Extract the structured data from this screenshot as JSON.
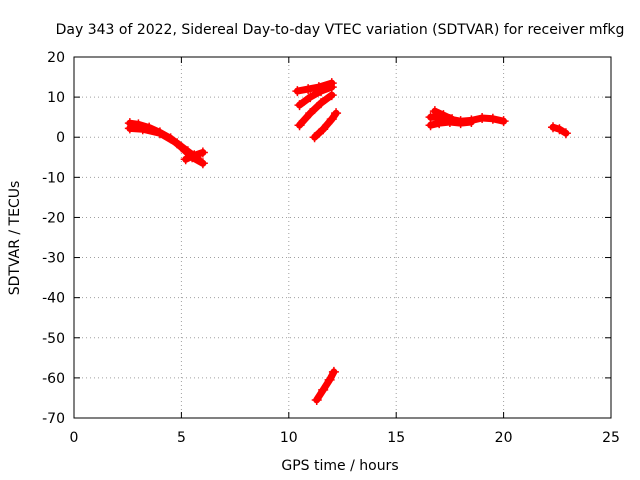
{
  "chart_data": {
    "type": "scatter",
    "title": "Day 343 of 2022, Sidereal Day-to-day VTEC variation (SDTVAR) for receiver mfkg",
    "xlabel": "GPS time / hours",
    "ylabel": "SDTVAR / TECUs",
    "xlim": [
      0,
      25
    ],
    "ylim": [
      -70,
      20
    ],
    "xticks": [
      0,
      5,
      10,
      15,
      20,
      25
    ],
    "yticks": [
      20,
      10,
      0,
      -10,
      -20,
      -30,
      -40,
      -50,
      -60,
      -70
    ],
    "grid": true,
    "series_color": "#ff0000",
    "series": [
      {
        "name": "trace-1",
        "x": [
          2.6,
          3.0,
          3.5,
          4.0,
          4.5,
          5.0,
          5.5,
          6.0
        ],
        "y": [
          3.5,
          3.2,
          2.4,
          1.2,
          -0.3,
          -2.5,
          -5.0,
          -6.5
        ]
      },
      {
        "name": "trace-1b",
        "x": [
          2.6,
          3.2,
          4.0,
          4.8,
          5.3,
          5.8
        ],
        "y": [
          2.2,
          2.0,
          1.0,
          -1.5,
          -3.5,
          -5.5
        ]
      },
      {
        "name": "trace-1c",
        "x": [
          5.2,
          5.6,
          6.0
        ],
        "y": [
          -5.5,
          -4.5,
          -3.8
        ]
      },
      {
        "name": "trace-2",
        "x": [
          10.4,
          10.9,
          11.4,
          12.0
        ],
        "y": [
          11.5,
          12.0,
          12.5,
          13.5
        ]
      },
      {
        "name": "trace-3",
        "x": [
          10.5,
          11.0,
          11.5,
          12.0
        ],
        "y": [
          8.0,
          10.0,
          11.5,
          12.5
        ]
      },
      {
        "name": "trace-4",
        "x": [
          10.5,
          11.0,
          11.5,
          12.0
        ],
        "y": [
          3.0,
          6.0,
          8.5,
          10.5
        ]
      },
      {
        "name": "trace-5",
        "x": [
          11.2,
          11.6,
          12.0,
          12.2
        ],
        "y": [
          0.0,
          2.0,
          4.5,
          6.0
        ]
      },
      {
        "name": "trace-6",
        "x": [
          11.3,
          11.6,
          11.9,
          12.1
        ],
        "y": [
          -65.5,
          -63.0,
          -60.5,
          -58.5
        ]
      },
      {
        "name": "trace-7",
        "x": [
          16.6,
          17.0,
          17.5,
          18.0,
          18.5,
          19.0,
          19.5,
          20.0
        ],
        "y": [
          5.0,
          5.0,
          4.5,
          4.0,
          4.2,
          4.8,
          4.6,
          4.0
        ]
      },
      {
        "name": "trace-7b",
        "x": [
          16.6,
          17.0,
          17.5,
          18.0,
          18.5
        ],
        "y": [
          3.0,
          3.5,
          3.8,
          3.5,
          3.8
        ]
      },
      {
        "name": "trace-7c",
        "x": [
          16.8,
          17.2,
          17.6
        ],
        "y": [
          6.5,
          5.5,
          4.5
        ]
      },
      {
        "name": "trace-8",
        "x": [
          22.3,
          22.6,
          22.9
        ],
        "y": [
          2.5,
          2.0,
          1.0
        ]
      }
    ]
  }
}
